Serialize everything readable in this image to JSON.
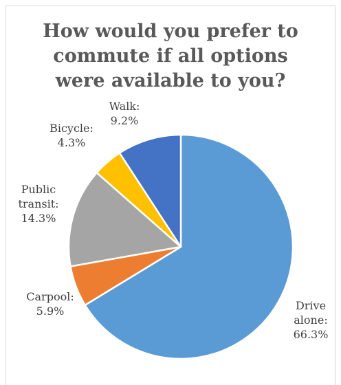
{
  "chart_data": {
    "type": "pie",
    "title_lines": [
      "How would you prefer to",
      "commute if all options",
      "were available to you?"
    ],
    "start_angle_deg": 0,
    "direction": "clockwise",
    "legend": "none",
    "slices": [
      {
        "name": "Drive alone",
        "label_lines": [
          "Drive",
          "alone:",
          "66.3%"
        ],
        "value": 66.3,
        "color": "#5b9bd5"
      },
      {
        "name": "Carpool",
        "label_lines": [
          "Carpool:",
          "5.9%"
        ],
        "value": 5.9,
        "color": "#ed7d31"
      },
      {
        "name": "Public transit",
        "label_lines": [
          "Public",
          "transit:",
          "14.3%"
        ],
        "value": 14.3,
        "color": "#a5a5a5"
      },
      {
        "name": "Bicycle",
        "label_lines": [
          "Bicycle:",
          "4.3%"
        ],
        "value": 4.3,
        "color": "#ffc000"
      },
      {
        "name": "Walk",
        "label_lines": [
          "Walk:",
          "9.2%"
        ],
        "value": 9.2,
        "color": "#4472c4"
      }
    ]
  }
}
